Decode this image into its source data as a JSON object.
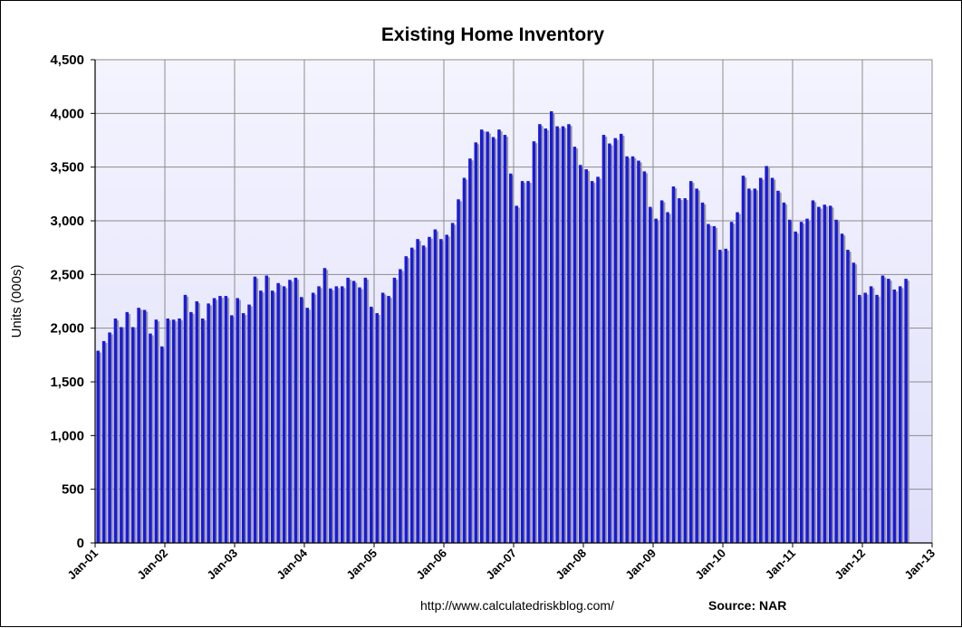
{
  "chart_data": {
    "type": "bar",
    "title": "Existing Home Inventory",
    "ylabel": "Units (000s)",
    "xlabel": "",
    "ylim": [
      0,
      4500
    ],
    "yticks": [
      0,
      500,
      1000,
      1500,
      2000,
      2500,
      3000,
      3500,
      4000,
      4500
    ],
    "ytick_labels": [
      "0",
      "500",
      "1,000",
      "1,500",
      "2,000",
      "2,500",
      "3,000",
      "3,500",
      "4,000",
      "4,500"
    ],
    "xtick_labels": [
      "Jan-01",
      "Jan-02",
      "Jan-03",
      "Jan-04",
      "Jan-05",
      "Jan-06",
      "Jan-07",
      "Jan-08",
      "Jan-09",
      "Jan-10",
      "Jan-11",
      "Jan-12",
      "Jan-13"
    ],
    "grid": true,
    "legend": "none",
    "colors": {
      "bar": "#1a1adc",
      "bar_shadow": "#9a9a9a",
      "plot_bg": "#eeeefd",
      "grid": "#8c8c8c"
    },
    "start_month": "Jan-01",
    "values": [
      1790,
      1880,
      1960,
      2090,
      2010,
      2150,
      2010,
      2190,
      2170,
      1950,
      2080,
      1830,
      2090,
      2080,
      2090,
      2310,
      2150,
      2250,
      2090,
      2230,
      2280,
      2300,
      2300,
      2120,
      2280,
      2140,
      2220,
      2480,
      2350,
      2490,
      2350,
      2420,
      2390,
      2450,
      2470,
      2290,
      2190,
      2330,
      2390,
      2560,
      2370,
      2390,
      2390,
      2470,
      2440,
      2380,
      2470,
      2200,
      2140,
      2330,
      2300,
      2470,
      2550,
      2670,
      2750,
      2830,
      2770,
      2850,
      2920,
      2830,
      2870,
      2980,
      3200,
      3400,
      3580,
      3730,
      3850,
      3830,
      3780,
      3850,
      3800,
      3440,
      3140,
      3370,
      3370,
      3740,
      3900,
      3860,
      4020,
      3880,
      3880,
      3900,
      3690,
      3520,
      3480,
      3370,
      3410,
      3800,
      3720,
      3770,
      3810,
      3600,
      3600,
      3560,
      3460,
      3130,
      3020,
      3190,
      3080,
      3320,
      3210,
      3210,
      3370,
      3300,
      3170,
      2970,
      2950,
      2730,
      2740,
      2990,
      3080,
      3420,
      3300,
      3300,
      3400,
      3510,
      3400,
      3280,
      3170,
      3010,
      2900,
      2990,
      3020,
      3190,
      3130,
      3150,
      3140,
      3010,
      2880,
      2730,
      2610,
      2310,
      2330,
      2390,
      2310,
      2490,
      2460,
      2360,
      2390,
      2460
    ]
  },
  "footer": {
    "url": "http://www.calculatedriskblog.com/",
    "source": "Source: NAR"
  }
}
